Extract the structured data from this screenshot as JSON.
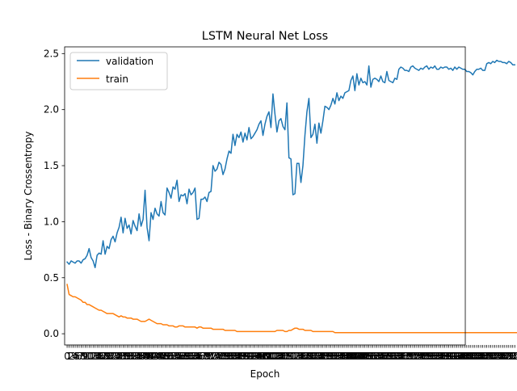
{
  "chart_data": {
    "type": "line",
    "title": "LSTM Neural Net Loss",
    "xlabel": "Epoch",
    "ylabel": "Loss - Binary Crossentropy",
    "xlim": [
      -1.25,
      199.25
    ],
    "ylim": [
      -0.1,
      2.56
    ],
    "yticks": [
      0.0,
      0.5,
      1.0,
      1.5,
      2.0,
      2.5
    ],
    "ytick_labels": [
      "0.0",
      "0.5",
      "1.0",
      "1.5",
      "2.0",
      "2.5"
    ],
    "xticks_every_integer": true,
    "grid": false,
    "legend_position": "top-left",
    "series": [
      {
        "name": "validation",
        "color": "#1f77b4",
        "values": [
          0.64,
          0.62,
          0.65,
          0.64,
          0.63,
          0.65,
          0.65,
          0.63,
          0.66,
          0.67,
          0.7,
          0.76,
          0.68,
          0.65,
          0.59,
          0.7,
          0.72,
          0.71,
          0.83,
          0.71,
          0.78,
          0.76,
          0.84,
          0.87,
          0.82,
          0.9,
          0.95,
          1.04,
          0.9,
          1.03,
          0.94,
          0.97,
          0.89,
          1.01,
          0.96,
          0.92,
          1.07,
          0.96,
          1.02,
          1.28,
          0.95,
          0.83,
          1.08,
          1.02,
          1.12,
          1.07,
          1.05,
          1.18,
          1.08,
          1.06,
          1.3,
          1.26,
          1.21,
          1.31,
          1.29,
          1.37,
          1.18,
          1.24,
          1.23,
          1.25,
          1.16,
          1.29,
          1.24,
          1.26,
          1.3,
          1.02,
          1.03,
          1.2,
          1.2,
          1.22,
          1.18,
          1.26,
          1.27,
          1.5,
          1.45,
          1.47,
          1.53,
          1.51,
          1.42,
          1.47,
          1.56,
          1.63,
          1.61,
          1.78,
          1.68,
          1.78,
          1.75,
          1.8,
          1.71,
          1.79,
          1.73,
          1.84,
          1.74,
          1.76,
          1.79,
          1.82,
          1.87,
          1.9,
          1.77,
          1.87,
          1.94,
          1.98,
          1.84,
          2.14,
          1.96,
          1.8,
          1.9,
          1.92,
          1.85,
          1.82,
          2.06,
          1.57,
          1.56,
          1.24,
          1.25,
          1.52,
          1.52,
          1.35,
          1.5,
          1.77,
          1.98,
          2.1,
          1.75,
          1.78,
          1.87,
          1.7,
          1.88,
          1.79,
          1.9,
          2.03,
          2.02,
          2.0,
          2.04,
          2.1,
          2.05,
          2.15,
          2.08,
          2.12,
          2.1,
          2.15,
          2.16,
          2.17,
          2.26,
          2.3,
          2.17,
          2.32,
          2.22,
          2.28,
          2.24,
          2.25,
          2.22,
          2.39,
          2.2,
          2.27,
          2.28,
          2.27,
          2.25,
          2.3,
          2.25,
          2.24,
          2.34,
          2.26,
          2.25,
          2.24,
          2.28,
          2.27,
          2.36,
          2.38,
          2.37,
          2.35,
          2.35,
          2.34,
          2.38,
          2.39,
          2.37,
          2.36,
          2.35,
          2.37,
          2.36,
          2.38,
          2.39,
          2.36,
          2.38,
          2.37,
          2.39,
          2.36,
          2.36,
          2.38,
          2.37,
          2.38,
          2.38,
          2.36,
          2.37,
          2.35,
          2.38,
          2.36,
          2.38,
          2.37,
          2.36,
          2.36,
          2.34,
          2.34,
          2.33,
          2.31,
          2.34,
          2.36,
          2.36,
          2.37,
          2.35,
          2.35,
          2.41,
          2.42,
          2.41,
          2.43,
          2.42,
          2.44,
          2.43,
          2.43,
          2.42,
          2.42,
          2.41,
          2.43,
          2.42,
          2.4,
          2.4
        ]
      },
      {
        "name": "train",
        "color": "#ff7f0e",
        "values": [
          0.44,
          0.35,
          0.34,
          0.33,
          0.33,
          0.32,
          0.31,
          0.3,
          0.28,
          0.28,
          0.26,
          0.26,
          0.25,
          0.24,
          0.23,
          0.22,
          0.21,
          0.21,
          0.2,
          0.19,
          0.18,
          0.18,
          0.18,
          0.18,
          0.17,
          0.16,
          0.15,
          0.16,
          0.15,
          0.15,
          0.14,
          0.14,
          0.14,
          0.13,
          0.13,
          0.13,
          0.12,
          0.11,
          0.11,
          0.11,
          0.12,
          0.13,
          0.12,
          0.11,
          0.1,
          0.09,
          0.09,
          0.09,
          0.08,
          0.08,
          0.08,
          0.07,
          0.07,
          0.07,
          0.06,
          0.06,
          0.07,
          0.07,
          0.07,
          0.06,
          0.06,
          0.06,
          0.06,
          0.06,
          0.06,
          0.05,
          0.06,
          0.06,
          0.05,
          0.05,
          0.05,
          0.05,
          0.05,
          0.04,
          0.04,
          0.04,
          0.04,
          0.04,
          0.04,
          0.03,
          0.03,
          0.03,
          0.03,
          0.03,
          0.03,
          0.02,
          0.02,
          0.02,
          0.02,
          0.02,
          0.02,
          0.02,
          0.02,
          0.02,
          0.02,
          0.02,
          0.02,
          0.02,
          0.02,
          0.02,
          0.02,
          0.02,
          0.02,
          0.02,
          0.02,
          0.03,
          0.03,
          0.03,
          0.03,
          0.02,
          0.02,
          0.03,
          0.03,
          0.04,
          0.05,
          0.05,
          0.04,
          0.04,
          0.04,
          0.03,
          0.03,
          0.03,
          0.03,
          0.02,
          0.02,
          0.02,
          0.02,
          0.02,
          0.02,
          0.02,
          0.02,
          0.02,
          0.02,
          0.02,
          0.01,
          0.01,
          0.01,
          0.01,
          0.01,
          0.01,
          0.01,
          0.01,
          0.01,
          0.01,
          0.01,
          0.01,
          0.01,
          0.01,
          0.01,
          0.01,
          0.01,
          0.01,
          0.01,
          0.01,
          0.01,
          0.01,
          0.01,
          0.01,
          0.01,
          0.01,
          0.01,
          0.01,
          0.01,
          0.01,
          0.01,
          0.01,
          0.01,
          0.01,
          0.01,
          0.01,
          0.01,
          0.01,
          0.01,
          0.01,
          0.01,
          0.01,
          0.01,
          0.01,
          0.01,
          0.01,
          0.01,
          0.01,
          0.01,
          0.01,
          0.01,
          0.01,
          0.01,
          0.01,
          0.01,
          0.01,
          0.01,
          0.01,
          0.01,
          0.01,
          0.01,
          0.01,
          0.01,
          0.01,
          0.01,
          0.01,
          0.01,
          0.01,
          0.01,
          0.01,
          0.01,
          0.01,
          0.01,
          0.01,
          0.01,
          0.01,
          0.01,
          0.01,
          0.01,
          0.01,
          0.01,
          0.01,
          0.01,
          0.01,
          0.01,
          0.01,
          0.01,
          0.01,
          0.01,
          0.01,
          0.01,
          0.01,
          0.01
        ]
      }
    ]
  }
}
